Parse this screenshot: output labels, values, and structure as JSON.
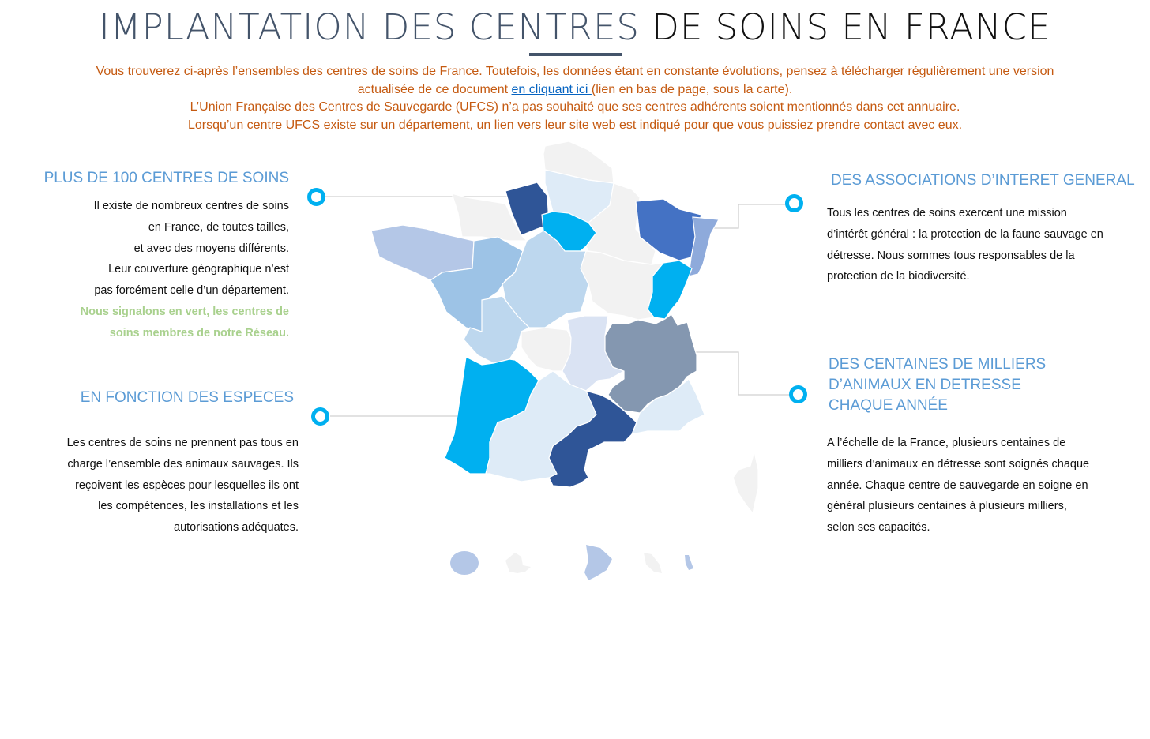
{
  "header": {
    "title_part1": "IMPLANTATION DES CENTRES",
    "title_part2": " DE SOINS EN FRANCE"
  },
  "intro": {
    "line1": "Vous trouverez ci-après l’ensembles des centres de soins de France. Toutefois, les données étant en constante évolutions, pensez à télécharger régulièrement une version",
    "line2_before": "actualisée de ce document ",
    "link": "en cliquant ici ",
    "line2_after": " (lien en bas de page, sous la carte).",
    "line3": "L’Union Française des Centres de Sauvegarde (UFCS) n’a pas souhaité que ses centres adhérents soient mentionnés dans cet annuaire.",
    "line4": "Lorsqu’un centre UFCS existe sur un département, un lien vers leur site web est indiqué pour que vous puissiez prendre contact avec eux."
  },
  "left": {
    "section1": {
      "heading": "PLUS DE 100 CENTRES DE SOINS",
      "lines": [
        "Il existe de nombreux centres de soins",
        "en France, de toutes tailles,",
        "et avec des moyens différents.",
        "Leur couverture géographique n’est",
        "pas forcément celle d’un département."
      ],
      "green_lines": [
        "Nous signalons en vert, les centres de",
        "soins membres de notre Réseau."
      ]
    },
    "section2": {
      "heading": "EN FONCTION DES ESPECES",
      "lines": [
        "Les centres de soins ne prennent pas tous en",
        "charge l’ensemble des animaux sauvages. Ils",
        "reçoivent les espèces pour lesquelles ils ont",
        "les compétences, les installations et les",
        "autorisations adéquates."
      ]
    }
  },
  "right": {
    "section1": {
      "heading": "DES ASSOCIATIONS D’INTERET GENERAL",
      "lines": [
        "Tous les centres de soins exercent une mission",
        "d’intérêt général : la protection de la faune sauvage en",
        "détresse. Nous sommes tous responsables de la",
        "protection de la biodiversité."
      ]
    },
    "section2": {
      "heading_lines": [
        "DES CENTAINES DE MILLIERS",
        "D’ANIMAUX EN DETRESSE",
        "CHAQUE ANNÉE"
      ],
      "lines": [
        "A l’échelle de la France, plusieurs centaines de",
        "milliers d’animaux en détresse sont soignés chaque",
        "année. Chaque centre de sauvegarde en soigne en",
        "général plusieurs centaines à plusieurs milliers,",
        "selon ses capacités."
      ]
    }
  },
  "colors": {
    "accent": "#00b0f0",
    "heading": "#5b9bd5",
    "intro": "#c55a11",
    "green": "#a9d18e",
    "dark_blue": "#2f5597",
    "blue": "#4472c4",
    "gray": "#f2f2f2"
  }
}
